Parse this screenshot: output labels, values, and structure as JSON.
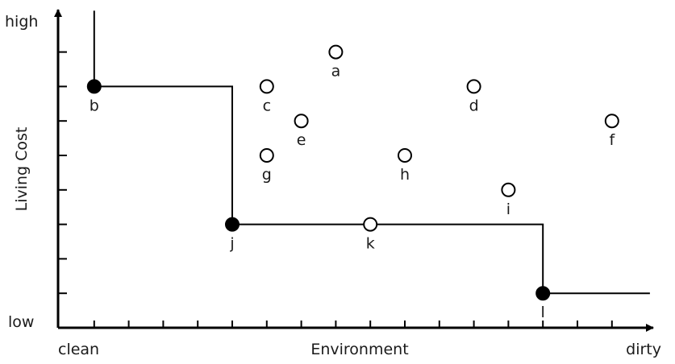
{
  "chart_data": {
    "type": "scatter",
    "title": "",
    "xlabel": "Environment",
    "ylabel": "Living Cost",
    "x_ticklabels": {
      "low": "clean",
      "high": "dirty"
    },
    "y_ticklabels": {
      "low": "low",
      "high": "high"
    },
    "grid": false,
    "legend": "none",
    "xlim": [
      0,
      17
    ],
    "ylim": [
      0,
      9
    ],
    "points": [
      {
        "label": "a",
        "x": 8,
        "y": 8,
        "skyline": false
      },
      {
        "label": "b",
        "x": 1,
        "y": 7,
        "skyline": true
      },
      {
        "label": "c",
        "x": 6,
        "y": 7,
        "skyline": false
      },
      {
        "label": "d",
        "x": 12,
        "y": 7,
        "skyline": false
      },
      {
        "label": "e",
        "x": 7,
        "y": 6,
        "skyline": false
      },
      {
        "label": "f",
        "x": 16,
        "y": 6,
        "skyline": false
      },
      {
        "label": "g",
        "x": 6,
        "y": 5,
        "skyline": false
      },
      {
        "label": "h",
        "x": 10,
        "y": 5,
        "skyline": false
      },
      {
        "label": "i",
        "x": 13,
        "y": 4,
        "skyline": false
      },
      {
        "label": "j",
        "x": 5,
        "y": 3,
        "skyline": true
      },
      {
        "label": "k",
        "x": 9,
        "y": 3,
        "skyline": false
      },
      {
        "label": "l",
        "x": 14,
        "y": 1,
        "skyline": true
      }
    ],
    "staircase": [
      [
        1,
        9.2
      ],
      [
        1,
        7
      ],
      [
        5,
        7
      ],
      [
        5,
        3
      ],
      [
        14,
        3
      ],
      [
        14,
        1
      ],
      [
        17.1,
        1
      ]
    ],
    "colors": {
      "ink": "#000000",
      "open_fill": "#ffffff",
      "skyline_fill": "#000000"
    }
  }
}
